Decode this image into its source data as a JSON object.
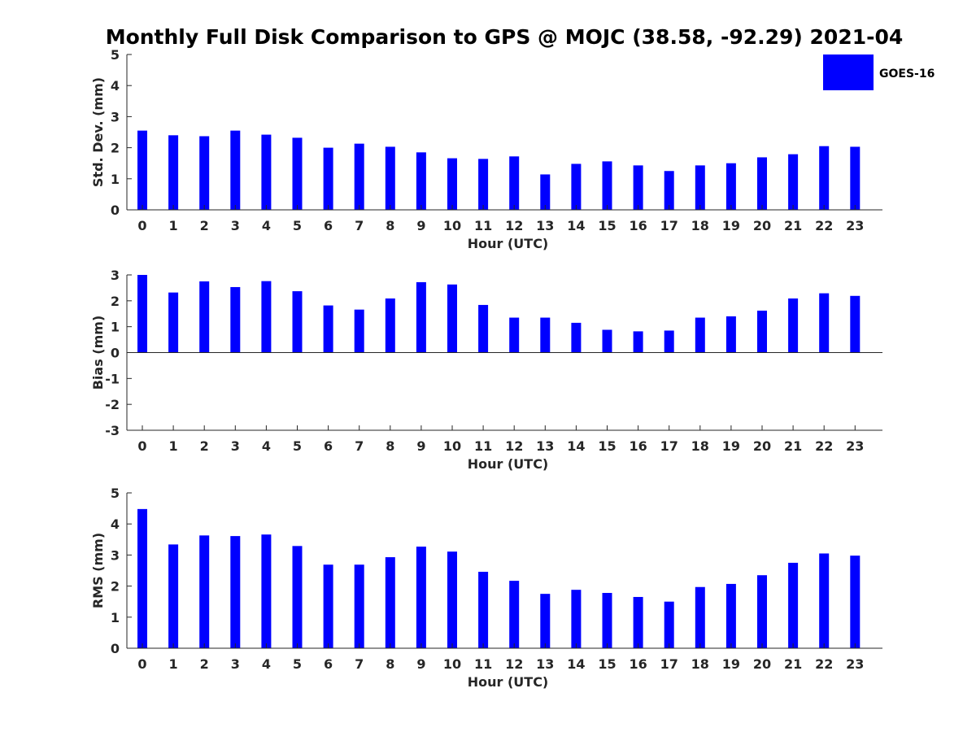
{
  "chart_data": {
    "type": "bar",
    "title": "Monthly Full Disk Comparison to GPS @ MOJC (38.58, -92.29) 2021-04",
    "legend": {
      "label": "GOES-16",
      "placement": "top-right"
    },
    "bar_color": "#0000ff",
    "categories": [
      "0",
      "1",
      "2",
      "3",
      "4",
      "5",
      "6",
      "7",
      "8",
      "9",
      "10",
      "11",
      "12",
      "13",
      "14",
      "15",
      "16",
      "17",
      "18",
      "19",
      "20",
      "21",
      "22",
      "23"
    ],
    "panels": [
      {
        "name": "std-dev",
        "ylabel": "Std. Dev. (mm)",
        "xlabel": "Hour (UTC)",
        "ylim": [
          0,
          5
        ],
        "yticks": [
          "0",
          "1",
          "2",
          "3",
          "4",
          "5"
        ],
        "values": [
          2.55,
          2.4,
          2.37,
          2.55,
          2.42,
          2.32,
          2.0,
          2.13,
          2.03,
          1.85,
          1.66,
          1.64,
          1.72,
          1.14,
          1.48,
          1.56,
          1.43,
          1.25,
          1.43,
          1.5,
          1.69,
          1.79,
          2.05,
          2.03
        ]
      },
      {
        "name": "bias",
        "ylabel": "Bias (mm)",
        "xlabel": "Hour (UTC)",
        "ylim": [
          -3,
          3
        ],
        "yticks": [
          "-3",
          "-2",
          "-1",
          "0",
          "1",
          "2",
          "3"
        ],
        "values": [
          3.0,
          2.32,
          2.75,
          2.53,
          2.76,
          2.37,
          1.82,
          1.66,
          2.09,
          2.72,
          2.63,
          1.84,
          1.35,
          1.35,
          1.15,
          0.88,
          0.82,
          0.85,
          1.35,
          1.4,
          1.62,
          2.09,
          2.29,
          2.19
        ]
      },
      {
        "name": "rms",
        "ylabel": "RMS (mm)",
        "xlabel": "Hour (UTC)",
        "ylim": [
          0,
          5
        ],
        "yticks": [
          "0",
          "1",
          "2",
          "3",
          "4",
          "5"
        ],
        "values": [
          4.48,
          3.34,
          3.63,
          3.61,
          3.66,
          3.29,
          2.69,
          2.69,
          2.93,
          3.27,
          3.11,
          2.46,
          2.17,
          1.75,
          1.88,
          1.78,
          1.65,
          1.5,
          1.97,
          2.07,
          2.35,
          2.75,
          3.05,
          2.98
        ]
      }
    ]
  }
}
